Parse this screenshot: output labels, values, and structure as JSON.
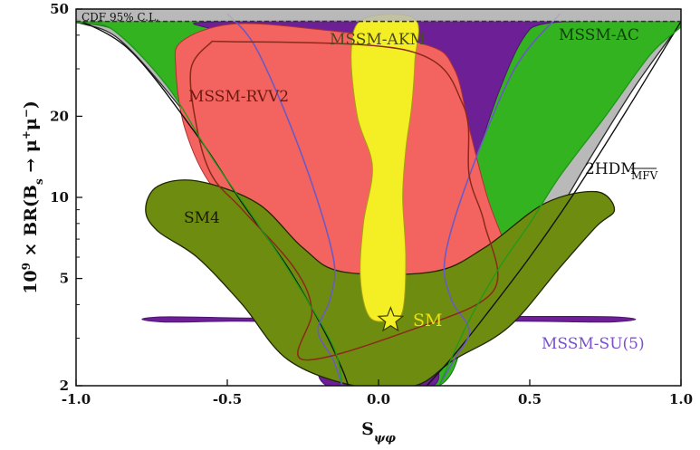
{
  "chart_data": {
    "type": "area",
    "title": "",
    "xlabel": "S_ψφ",
    "ylabel": "10^9 × BR(B_s → μ^+ μ^-)",
    "xlim": [
      -1.0,
      1.0
    ],
    "ylim": [
      2,
      50
    ],
    "yscale": "log",
    "x_ticks": [
      -1.0,
      -0.5,
      0.0,
      0.5,
      1.0
    ],
    "x_tick_labels": [
      "-1.0",
      "-0.5",
      "0.0",
      "0.5",
      "1.0"
    ],
    "y_ticks": [
      2,
      5,
      10,
      20,
      50
    ],
    "y_tick_labels": [
      "2",
      "5",
      "10",
      "20",
      "50"
    ],
    "grid": false,
    "legend": "none",
    "colors": {
      "mfv_2hdm": "#b9b9b9",
      "mssm_ac": "#33b31f",
      "mssm_akm": "#f4ef24",
      "mssm_rvv2": "#f36461",
      "sm4": "#6e8d10",
      "mssm_su5": "#6d1f96",
      "su5_contour": "#6b5ac4",
      "rvv2_contour": "#8b2a1a",
      "cdf_line": "#333333"
    },
    "annotations": {
      "cdf_limit": {
        "label": "CDF 95% C.L.",
        "y": 45
      },
      "sm_point": {
        "label": "SM",
        "x": 0.04,
        "y": 3.5
      },
      "mssm_akm": "MSSM-AKM",
      "mssm_ac": "MSSM-AC",
      "mssm_rvv2": "MSSM-RVV2",
      "sm4": "SM4",
      "mfv_2hdm": {
        "main": "2HDM",
        "subscript": "MFV"
      },
      "mssm_su5": "MSSM-SU(5)"
    },
    "regions": {
      "mfv_2hdm": [
        [
          -1.0,
          50
        ],
        [
          -1.0,
          45
        ],
        [
          -0.85,
          38
        ],
        [
          -0.6,
          18
        ],
        [
          -0.45,
          10
        ],
        [
          -0.3,
          6
        ],
        [
          -0.2,
          4
        ],
        [
          -0.1,
          2.6
        ],
        [
          -0.08,
          2
        ],
        [
          0.15,
          2
        ],
        [
          0.3,
          3
        ],
        [
          0.45,
          4.5
        ],
        [
          0.6,
          9
        ],
        [
          0.7,
          14
        ],
        [
          0.85,
          26
        ],
        [
          1.0,
          45
        ],
        [
          1.0,
          50
        ]
      ],
      "mssm_ac": [
        [
          -1.0,
          45
        ],
        [
          -0.88,
          42
        ],
        [
          -0.7,
          26
        ],
        [
          -0.55,
          14
        ],
        [
          -0.4,
          8
        ],
        [
          -0.28,
          5
        ],
        [
          -0.15,
          2.8
        ],
        [
          -0.12,
          2
        ],
        [
          0.2,
          2
        ],
        [
          0.3,
          3.5
        ],
        [
          0.4,
          5.5
        ],
        [
          0.5,
          8
        ],
        [
          0.6,
          12
        ],
        [
          0.75,
          20
        ],
        [
          0.9,
          34
        ],
        [
          1.0,
          43
        ],
        [
          1.0,
          45
        ]
      ],
      "mssm_su5": [
        [
          -0.17,
          2
        ],
        [
          -0.25,
          3.3
        ],
        [
          -0.72,
          3.45
        ],
        [
          -0.72,
          3.6
        ],
        [
          -0.2,
          3.7
        ],
        [
          -0.05,
          5.5
        ],
        [
          -0.28,
          35
        ],
        [
          -0.55,
          42
        ],
        [
          -0.5,
          45
        ],
        [
          0.6,
          45
        ],
        [
          0.5,
          42
        ],
        [
          0.4,
          25
        ],
        [
          0.25,
          8
        ],
        [
          0.15,
          4.5
        ],
        [
          0.22,
          3.7
        ],
        [
          0.78,
          3.6
        ],
        [
          0.78,
          3.45
        ],
        [
          0.22,
          3.3
        ],
        [
          0.18,
          2
        ]
      ],
      "mssm_rvv2": [
        [
          -0.65,
          38
        ],
        [
          -0.48,
          44
        ],
        [
          -0.2,
          42
        ],
        [
          0.15,
          37
        ],
        [
          0.25,
          30
        ],
        [
          0.3,
          18
        ],
        [
          0.36,
          10
        ],
        [
          0.43,
          6
        ],
        [
          0.44,
          4
        ],
        [
          0.35,
          3.4
        ],
        [
          0.2,
          2.8
        ],
        [
          0.0,
          2.4
        ],
        [
          -0.12,
          2.3
        ],
        [
          -0.15,
          2.8
        ],
        [
          -0.25,
          5
        ],
        [
          -0.38,
          7.5
        ],
        [
          -0.55,
          11
        ],
        [
          -0.64,
          18
        ],
        [
          -0.67,
          30
        ]
      ],
      "sm4": [
        [
          -0.77,
          9
        ],
        [
          -0.73,
          11
        ],
        [
          -0.6,
          11.5
        ],
        [
          -0.4,
          9.5
        ],
        [
          -0.25,
          6.5
        ],
        [
          -0.12,
          5.3
        ],
        [
          0.18,
          5.3
        ],
        [
          0.35,
          6.5
        ],
        [
          0.55,
          9.5
        ],
        [
          0.72,
          10.5
        ],
        [
          0.78,
          9
        ],
        [
          0.72,
          7.8
        ],
        [
          0.6,
          5.5
        ],
        [
          0.43,
          3.3
        ],
        [
          0.25,
          2.5
        ],
        [
          0.12,
          2
        ],
        [
          -0.08,
          2
        ],
        [
          -0.3,
          2.5
        ],
        [
          -0.45,
          4
        ],
        [
          -0.6,
          6
        ],
        [
          -0.73,
          7.5
        ]
      ],
      "mssm_akm": [
        [
          -0.05,
          46
        ],
        [
          -0.09,
          35
        ],
        [
          -0.07,
          20
        ],
        [
          -0.02,
          13
        ],
        [
          -0.05,
          8
        ],
        [
          -0.06,
          5
        ],
        [
          -0.03,
          3.6
        ],
        [
          0.04,
          3.5
        ],
        [
          0.08,
          3.8
        ],
        [
          0.09,
          6
        ],
        [
          0.08,
          10
        ],
        [
          0.09,
          15
        ],
        [
          0.11,
          22
        ],
        [
          0.12,
          32
        ],
        [
          0.12,
          46
        ]
      ]
    },
    "contours": {
      "mssm_rvv2": [
        [
          -0.55,
          38
        ],
        [
          0.1,
          35
        ],
        [
          0.28,
          22
        ],
        [
          0.3,
          12
        ],
        [
          0.35,
          8
        ],
        [
          0.38,
          4.5
        ],
        [
          0.1,
          3.2
        ],
        [
          -0.25,
          2.5
        ],
        [
          -0.22,
          3.8
        ],
        [
          -0.28,
          5.5
        ],
        [
          -0.45,
          9
        ],
        [
          -0.55,
          12
        ],
        [
          -0.6,
          18
        ],
        [
          -0.62,
          30
        ],
        [
          -0.55,
          38
        ]
      ],
      "mssm_su5_boundary": [
        [
          -0.5,
          48
        ],
        [
          -0.4,
          35
        ],
        [
          -0.25,
          14
        ],
        [
          -0.15,
          6
        ],
        [
          -0.16,
          4.2
        ],
        [
          -0.2,
          3.2
        ],
        [
          -0.15,
          2.5
        ],
        [
          -0.12,
          2
        ]
      ],
      "mssm_su5_boundary_right": [
        [
          0.6,
          48
        ],
        [
          0.45,
          30
        ],
        [
          0.3,
          12
        ],
        [
          0.22,
          6
        ],
        [
          0.24,
          4.2
        ],
        [
          0.3,
          3.2
        ],
        [
          0.25,
          2.5
        ],
        [
          0.2,
          2
        ]
      ],
      "mfv_2hdm_left": [
        [
          -1.0,
          46
        ],
        [
          -0.82,
          35
        ],
        [
          -0.6,
          17
        ],
        [
          -0.45,
          9.5
        ],
        [
          -0.3,
          5.5
        ],
        [
          -0.18,
          3.2
        ],
        [
          -0.12,
          2.3
        ],
        [
          -0.1,
          2
        ]
      ],
      "mfv_2hdm_right": [
        [
          0.16,
          2
        ],
        [
          0.25,
          2.6
        ],
        [
          0.35,
          3.6
        ],
        [
          0.5,
          6
        ],
        [
          0.65,
          10.5
        ],
        [
          0.82,
          21
        ],
        [
          1.0,
          45
        ]
      ]
    }
  }
}
